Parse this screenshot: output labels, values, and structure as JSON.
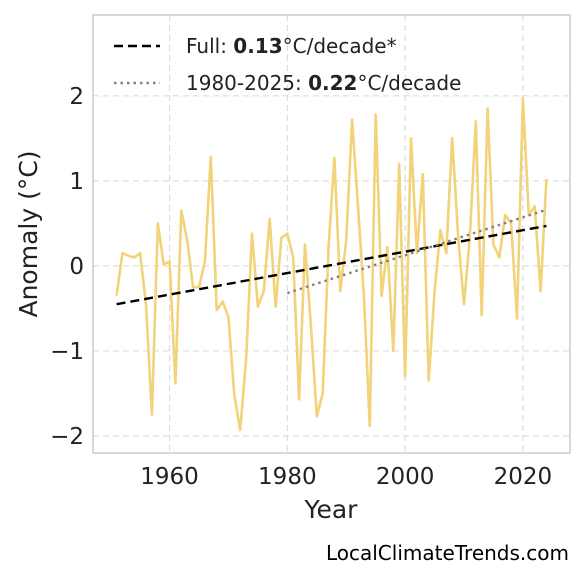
{
  "chart_data": {
    "type": "line",
    "xlabel": "Year",
    "ylabel": "Anomaly (°C)",
    "xlim": [
      1947,
      2028
    ],
    "ylim": [
      -2.2,
      2.95
    ],
    "x_ticks": [
      1960,
      1980,
      2000,
      2020
    ],
    "y_ticks": [
      -2,
      -1,
      0,
      1,
      2
    ],
    "x_tick_labels": [
      "1960",
      "1980",
      "2000",
      "2020"
    ],
    "y_tick_labels": [
      "−2",
      "−1",
      "0",
      "1",
      "2"
    ],
    "grid": true,
    "legend_position": "top-left",
    "series": [
      {
        "style": "solid",
        "color": "#f2d37a",
        "x": [
          1951,
          1952,
          1953,
          1954,
          1955,
          1956,
          1957,
          1958,
          1959,
          1960,
          1961,
          1962,
          1963,
          1964,
          1965,
          1966,
          1967,
          1968,
          1969,
          1970,
          1971,
          1972,
          1973,
          1974,
          1975,
          1976,
          1977,
          1978,
          1979,
          1980,
          1981,
          1982,
          1983,
          1984,
          1985,
          1986,
          1987,
          1988,
          1989,
          1990,
          1991,
          1992,
          1993,
          1994,
          1995,
          1996,
          1997,
          1998,
          1999,
          2000,
          2001,
          2002,
          2003,
          2004,
          2005,
          2006,
          2007,
          2008,
          2009,
          2010,
          2011,
          2012,
          2013,
          2014,
          2015,
          2016,
          2017,
          2018,
          2019,
          2020,
          2021,
          2022,
          2023,
          2024
        ],
        "values": [
          -0.35,
          0.15,
          0.12,
          0.1,
          0.15,
          -0.45,
          -1.75,
          0.5,
          0.02,
          0.05,
          -1.38,
          0.65,
          0.3,
          -0.25,
          -0.25,
          0.05,
          1.28,
          -0.52,
          -0.42,
          -0.6,
          -1.52,
          -1.93,
          -1.1,
          0.38,
          -0.48,
          -0.3,
          0.55,
          -0.48,
          0.33,
          0.38,
          0.1,
          -1.57,
          0.25,
          -0.7,
          -1.77,
          -1.5,
          0.22,
          1.27,
          -0.3,
          0.3,
          1.72,
          0.7,
          -0.35,
          -1.88,
          1.78,
          -0.35,
          0.22,
          -1.0,
          1.2,
          -1.3,
          1.5,
          0.15,
          1.08,
          -1.35,
          -0.3,
          0.42,
          0.15,
          1.5,
          0.35,
          -0.45,
          0.35,
          1.7,
          -0.58,
          1.85,
          0.25,
          0.1,
          0.6,
          0.5,
          -0.62,
          1.97,
          0.6,
          0.7,
          -0.3,
          1.02
        ]
      },
      {
        "name": "Full",
        "style": "dashed",
        "color": "#000000",
        "x": [
          1951,
          2024
        ],
        "values": [
          -0.45,
          0.47
        ]
      },
      {
        "name": "1980-2025",
        "style": "dotted",
        "color": "#808080",
        "x": [
          1980,
          2024
        ],
        "values": [
          -0.32,
          0.66
        ]
      }
    ],
    "legend": [
      {
        "prefix": "Full: ",
        "value": "0.13",
        "suffix": "°C/decade*",
        "style": "dashed",
        "color": "#000000"
      },
      {
        "prefix": "1980-2025: ",
        "value": "0.22",
        "suffix": "°C/decade",
        "style": "dotted",
        "color": "#808080"
      }
    ]
  },
  "source": "LocalClimateTrends.com"
}
